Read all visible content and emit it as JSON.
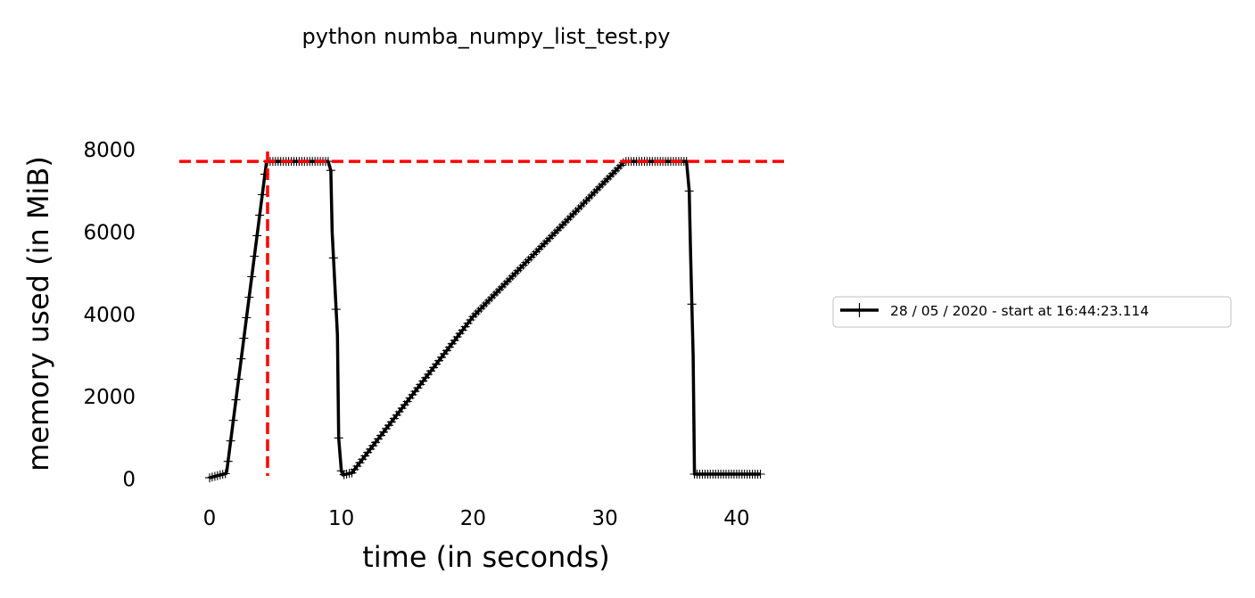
{
  "chart_data": {
    "type": "line",
    "title": "python numba_numpy_list_test.py",
    "xlabel": "time (in seconds)",
    "ylabel": "memory used (in MiB)",
    "xlim": [
      -2.3,
      43.8
    ],
    "ylim": [
      -400,
      8350
    ],
    "xticks": [
      0,
      10,
      20,
      30,
      40
    ],
    "yticks": [
      0,
      2000,
      4000,
      6000,
      8000
    ],
    "grid": false,
    "legend_position": "center-right outside",
    "series": [
      {
        "name": "28 / 05 / 2020 - start at 16:44:23.114",
        "color": "#000000",
        "marker": "+",
        "x": [
          0.0,
          0.8,
          1.2,
          1.3,
          4.3,
          4.4,
          9.0,
          9.2,
          9.3,
          9.7,
          9.8,
          10.0,
          10.1,
          10.8,
          20.0,
          31.5,
          36.2,
          36.4,
          36.5,
          36.7,
          36.8,
          41.8
        ],
        "values": [
          30,
          100,
          130,
          180,
          7660,
          7720,
          7720,
          7500,
          6000,
          3500,
          1000,
          200,
          100,
          150,
          3950,
          7720,
          7720,
          7000,
          5500,
          3000,
          120,
          120
        ]
      }
    ],
    "reference_lines": {
      "color": "#ff0000",
      "style": "dashed",
      "horizontal_y": 7720,
      "vertical_x": 4.4
    }
  }
}
